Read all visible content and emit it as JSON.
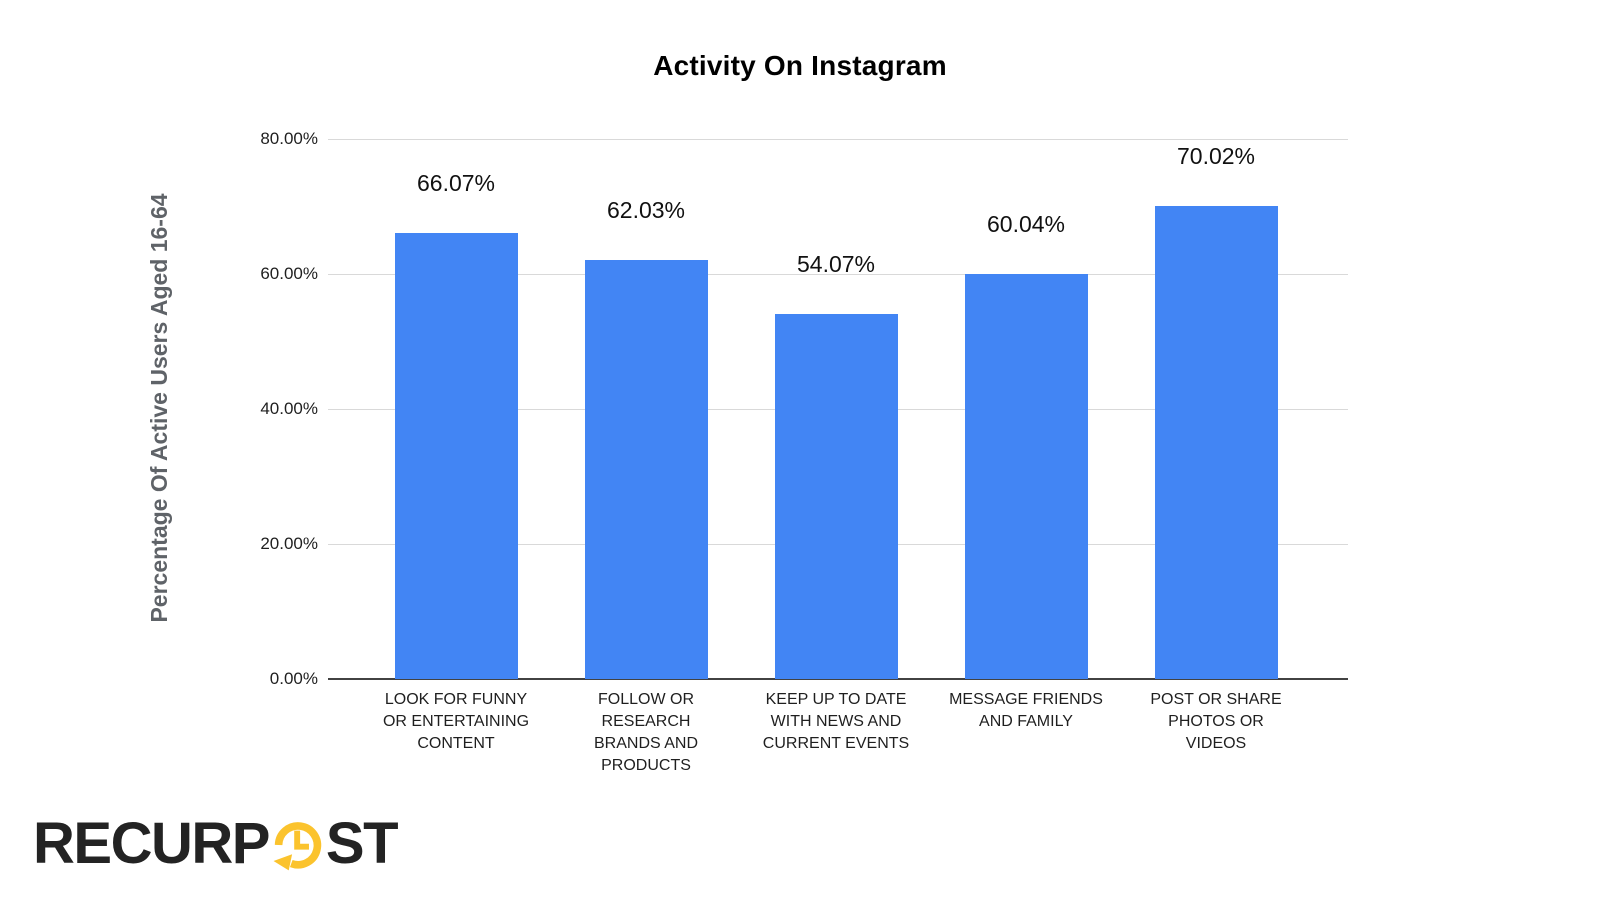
{
  "header": {
    "title": "Activity On Instagram"
  },
  "chart_data": {
    "type": "bar",
    "title": "Activity On Instagram",
    "xlabel": "",
    "ylabel": "Percentage Of Active Users Aged 16-64",
    "categories": [
      "LOOK FOR FUNNY OR ENTERTAINING CONTENT",
      "FOLLOW OR RESEARCH BRANDS AND PRODUCTS",
      "KEEP UP TO DATE WITH NEWS AND CURRENT EVENTS",
      "MESSAGE FRIENDS AND FAMILY",
      "POST OR SHARE PHOTOS OR VIDEOS"
    ],
    "categories_wrapped": [
      "LOOK FOR FUNNY\nOR ENTERTAINING\nCONTENT",
      "FOLLOW OR\nRESEARCH\nBRANDS AND\nPRODUCTS",
      "KEEP UP TO DATE\nWITH NEWS AND\nCURRENT EVENTS",
      "MESSAGE FRIENDS\nAND FAMILY",
      "POST OR SHARE\nPHOTOS OR\nVIDEOS"
    ],
    "values": [
      66.07,
      62.03,
      54.07,
      60.04,
      70.02
    ],
    "data_labels": [
      "66.07%",
      "62.03%",
      "54.07%",
      "60.04%",
      "70.02%"
    ],
    "y_ticks": [
      {
        "value": 0,
        "label": "0.00%"
      },
      {
        "value": 20,
        "label": "20.00%"
      },
      {
        "value": 40,
        "label": "40.00%"
      },
      {
        "value": 60,
        "label": "60.00%"
      },
      {
        "value": 80,
        "label": "80.00%"
      }
    ],
    "ylim": [
      0,
      80
    ],
    "grid": true,
    "legend_position": "none",
    "bar_color": "#4285F4"
  },
  "colors": {
    "bar": "#4285F4",
    "gridline": "#d9d9d9",
    "axis_line": "#424242",
    "axis_text": "#1f1f1f",
    "y_title_text": "#5f6368",
    "background": "#ffffff"
  },
  "logo": {
    "brand": "RecurPost",
    "text_before": "RECURP",
    "text_after": "ST",
    "icon": "clock-history-icon",
    "text_color": "#232323",
    "accent_color": "#FBC32D"
  }
}
